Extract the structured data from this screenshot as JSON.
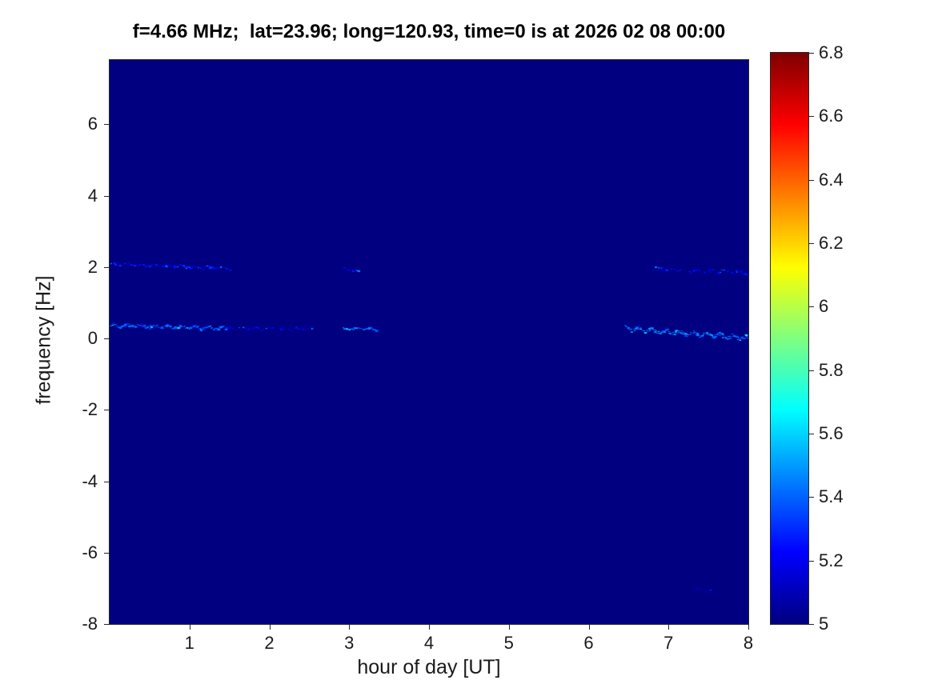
{
  "chart_data": {
    "type": "heatmap",
    "title": "f=4.66 MHz;  lat=23.96; long=120.93, time=0 is at 2026 02 08 00:00",
    "xlabel": "hour of day [UT]",
    "ylabel": "frequency [Hz]",
    "xlim": [
      0,
      8
    ],
    "ylim": [
      -8,
      7.8
    ],
    "xticks": [
      {
        "value": 1,
        "label": "1"
      },
      {
        "value": 2,
        "label": "2"
      },
      {
        "value": 3,
        "label": "3"
      },
      {
        "value": 4,
        "label": "4"
      },
      {
        "value": 5,
        "label": "5"
      },
      {
        "value": 6,
        "label": "6"
      },
      {
        "value": 7,
        "label": "7"
      },
      {
        "value": 8,
        "label": "8"
      }
    ],
    "yticks": [
      {
        "value": 6,
        "label": "6"
      },
      {
        "value": 4,
        "label": "4"
      },
      {
        "value": 2,
        "label": "2"
      },
      {
        "value": 0,
        "label": "0"
      },
      {
        "value": -2,
        "label": "-2"
      },
      {
        "value": -4,
        "label": "-4"
      },
      {
        "value": -6,
        "label": "-6"
      },
      {
        "value": -8,
        "label": "-8"
      }
    ],
    "colormap": "jet",
    "clim": [
      5,
      6.8
    ],
    "colorbar_ticks": [
      {
        "value": 6.8,
        "label": "6.8"
      },
      {
        "value": 6.6,
        "label": "6.6"
      },
      {
        "value": 6.4,
        "label": "6.4"
      },
      {
        "value": 6.2,
        "label": "6.2"
      },
      {
        "value": 6.0,
        "label": "6"
      },
      {
        "value": 5.8,
        "label": "5.8"
      },
      {
        "value": 5.6,
        "label": "5.6"
      },
      {
        "value": 5.4,
        "label": "5.4"
      },
      {
        "value": 5.2,
        "label": "5.2"
      },
      {
        "value": 5.0,
        "label": "5"
      }
    ],
    "background_value": 5.0,
    "colors": {
      "figure_bg": "#ffffff",
      "axis": "#262626",
      "title": "#000000"
    },
    "legend": "none",
    "grid": false,
    "traces": [
      {
        "name": "morning-carrier-bright",
        "x_start": 0.0,
        "x_end": 1.45,
        "y_start": 0.38,
        "y_end": 0.3,
        "value": 5.38,
        "wiggle": 0.07,
        "density": 0.92,
        "description": "bright wiggly spectral line near +0.3 Hz, hours 0-1.5"
      },
      {
        "name": "morning-carrier-faint",
        "x_start": 1.45,
        "x_end": 2.55,
        "y_start": 0.3,
        "y_end": 0.28,
        "value": 5.18,
        "wiggle": 0.05,
        "density": 0.45,
        "description": "faint continuation of the 0.3 Hz line"
      },
      {
        "name": "morning-carrier-end",
        "x_start": 2.92,
        "x_end": 3.34,
        "y_start": 0.3,
        "y_end": 0.26,
        "value": 5.42,
        "wiggle": 0.05,
        "density": 0.9,
        "description": "bright dashed segment near 0.3 Hz around hour 3"
      },
      {
        "name": "morning-upper-line",
        "x_start": 0.0,
        "x_end": 1.5,
        "y_start": 2.1,
        "y_end": 1.97,
        "value": 5.22,
        "wiggle": 0.06,
        "density": 0.6,
        "description": "faint spectral line near +2 Hz, hours 0-1.5"
      },
      {
        "name": "morning-upper-dash",
        "x_start": 2.9,
        "x_end": 3.12,
        "y_start": 1.95,
        "y_end": 1.9,
        "value": 5.2,
        "wiggle": 0.05,
        "density": 0.6,
        "description": "short faint dash near +2 Hz around hour 3"
      },
      {
        "name": "evening-carrier",
        "x_start": 6.45,
        "x_end": 8.0,
        "y_start": 0.3,
        "y_end": 0.02,
        "value": 5.42,
        "wiggle": 0.1,
        "density": 0.9,
        "description": "bright wiggly line drifting from +0.3 Hz to 0 Hz, hours 6.5-8"
      },
      {
        "name": "evening-upper-line",
        "x_start": 6.8,
        "x_end": 8.0,
        "y_start": 1.97,
        "y_end": 1.85,
        "value": 5.2,
        "wiggle": 0.06,
        "density": 0.5,
        "description": "faint line near +1.9 Hz, hours 6.8-8"
      },
      {
        "name": "faint-spot-lower-right",
        "x_start": 7.3,
        "x_end": 7.6,
        "y_start": -7.0,
        "y_end": -7.1,
        "value": 5.12,
        "wiggle": 0.08,
        "density": 0.5,
        "description": "very faint smudge near -7 Hz around hour 7.4"
      }
    ]
  }
}
